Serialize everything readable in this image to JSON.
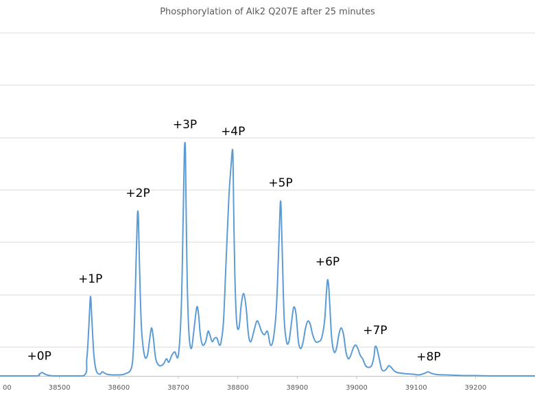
{
  "chart_data": {
    "type": "line",
    "title": "Phosphorylation of Alk2 Q207E after 25 minutes",
    "xlabel": "",
    "ylabel": "",
    "xlim": [
      38400,
      39300
    ],
    "ylim": [
      0,
      1
    ],
    "x_ticks": [
      38500,
      38600,
      38700,
      38800,
      38900,
      39000,
      39100,
      39200
    ],
    "x_tick_labels": [
      "38500",
      "38600",
      "38700",
      "38800",
      "38900",
      "39000",
      "39100",
      "39200"
    ],
    "first_tick_fragment": "00",
    "grid": {
      "horizontal": true,
      "vertical": false
    },
    "line_color": "#5b9bd5",
    "series": [
      {
        "x": [
          38400,
          38460,
          38466,
          38471,
          38476,
          38490,
          38540,
          38546,
          38549,
          38551,
          38552,
          38553,
          38555,
          38558,
          38562,
          38568,
          38572,
          38576,
          38582,
          38595,
          38610,
          38622,
          38626,
          38629,
          38631,
          38632,
          38633,
          38635,
          38638,
          38643,
          38648,
          38652,
          38655,
          38658,
          38662,
          38668,
          38675,
          38680,
          38684,
          38689,
          38694,
          38700,
          38705,
          38708,
          38710,
          38711,
          38712,
          38713,
          38715,
          38718,
          38722,
          38726,
          38731,
          38734,
          38737,
          38741,
          38746,
          38750,
          38753,
          38757,
          38761,
          38765,
          38769,
          38772,
          38776,
          38780,
          38785,
          38789,
          38791,
          38792,
          38793,
          38795,
          38798,
          38802,
          38806,
          38810,
          38814,
          38818,
          38822,
          38827,
          38832,
          38836,
          38840,
          38845,
          38850,
          38855,
          38860,
          38865,
          38869,
          38871,
          38872,
          38873,
          38875,
          38878,
          38882,
          38886,
          38890,
          38894,
          38898,
          38902,
          38906,
          38910,
          38914,
          38918,
          38922,
          38926,
          38931,
          38936,
          38941,
          38946,
          38949,
          38951,
          38953,
          38955,
          38958,
          38962,
          38966,
          38970,
          38974,
          38978,
          38982,
          38986,
          38990,
          38994,
          38998,
          39002,
          39006,
          39010,
          39015,
          39020,
          39025,
          39029,
          39031,
          39034,
          39038,
          39042,
          39046,
          39050,
          39054,
          39058,
          39063,
          39068,
          39075,
          39085,
          39095,
          39105,
          39115,
          39120,
          39125,
          39135,
          39150,
          39165,
          39180,
          39200,
          39230,
          39260,
          39300
        ],
        "y": [
          0.0,
          0.0,
          0.005,
          0.01,
          0.005,
          0.0,
          0.0,
          0.05,
          0.13,
          0.2,
          0.23,
          0.22,
          0.15,
          0.06,
          0.015,
          0.005,
          0.012,
          0.008,
          0.004,
          0.003,
          0.006,
          0.03,
          0.15,
          0.34,
          0.46,
          0.48,
          0.45,
          0.3,
          0.14,
          0.06,
          0.06,
          0.11,
          0.14,
          0.11,
          0.05,
          0.03,
          0.035,
          0.05,
          0.04,
          0.06,
          0.07,
          0.06,
          0.2,
          0.45,
          0.64,
          0.68,
          0.65,
          0.5,
          0.27,
          0.12,
          0.08,
          0.13,
          0.2,
          0.18,
          0.12,
          0.09,
          0.1,
          0.13,
          0.12,
          0.1,
          0.11,
          0.11,
          0.09,
          0.1,
          0.16,
          0.32,
          0.52,
          0.62,
          0.66,
          0.63,
          0.5,
          0.3,
          0.16,
          0.14,
          0.21,
          0.24,
          0.2,
          0.12,
          0.1,
          0.13,
          0.16,
          0.15,
          0.13,
          0.12,
          0.13,
          0.09,
          0.11,
          0.2,
          0.38,
          0.48,
          0.51,
          0.48,
          0.35,
          0.17,
          0.1,
          0.1,
          0.15,
          0.2,
          0.18,
          0.1,
          0.08,
          0.1,
          0.14,
          0.16,
          0.15,
          0.12,
          0.1,
          0.1,
          0.11,
          0.16,
          0.24,
          0.28,
          0.26,
          0.2,
          0.11,
          0.07,
          0.08,
          0.12,
          0.14,
          0.12,
          0.07,
          0.05,
          0.06,
          0.08,
          0.09,
          0.08,
          0.06,
          0.05,
          0.03,
          0.025,
          0.03,
          0.055,
          0.085,
          0.08,
          0.05,
          0.02,
          0.015,
          0.02,
          0.03,
          0.025,
          0.015,
          0.01,
          0.008,
          0.006,
          0.005,
          0.003,
          0.008,
          0.012,
          0.008,
          0.004,
          0.003,
          0.002,
          0.001,
          0.001,
          0.0,
          0.0,
          0.0
        ]
      }
    ],
    "annotations": [
      {
        "label": "+0P",
        "x": 38466,
        "y": 0.015
      },
      {
        "label": "+1P",
        "x": 38552,
        "y": 0.24
      },
      {
        "label": "+2P",
        "x": 38632,
        "y": 0.49
      },
      {
        "label": "+3P",
        "x": 38711,
        "y": 0.69
      },
      {
        "label": "+4P",
        "x": 38792,
        "y": 0.67
      },
      {
        "label": "+5P",
        "x": 38872,
        "y": 0.52
      },
      {
        "label": "+6P",
        "x": 38951,
        "y": 0.29
      },
      {
        "label": "+7P",
        "x": 39031,
        "y": 0.09
      },
      {
        "label": "+8P",
        "x": 39121,
        "y": 0.013
      }
    ]
  }
}
